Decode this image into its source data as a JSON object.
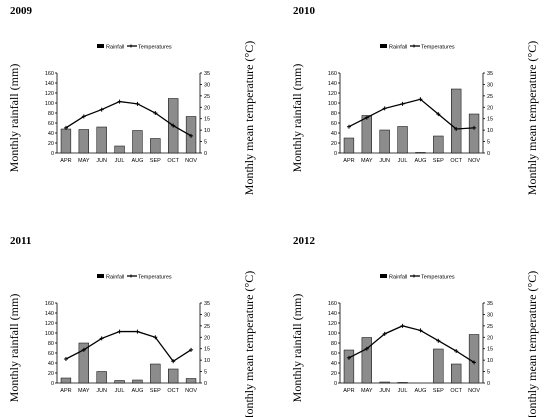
{
  "legend": {
    "rainfall": "Rainfall",
    "temperatures": "Temperatures"
  },
  "chart_data": [
    {
      "type": "bar+line",
      "title": "2009",
      "categories": [
        "APR",
        "MAY",
        "JUN",
        "JUL",
        "AUG",
        "SEP",
        "OCT",
        "NOV"
      ],
      "series": [
        {
          "name": "Rainfall",
          "type": "bar",
          "axis": "left",
          "values": [
            48,
            47,
            52,
            14,
            45,
            29,
            109,
            73
          ]
        },
        {
          "name": "Temperatures",
          "type": "line",
          "axis": "right",
          "values": [
            11,
            16,
            19,
            22.5,
            21.5,
            17.5,
            12,
            7.5
          ]
        }
      ],
      "ylabel": "Monthly rainfall (mm)",
      "y2label": "Monthly mean temperature (°C)",
      "ylim": [
        0,
        160
      ],
      "yticks": [
        0,
        20,
        40,
        60,
        80,
        100,
        120,
        140,
        160
      ],
      "y2lim": [
        0,
        35
      ],
      "y2ticks": [
        0,
        5,
        10,
        15,
        20,
        25,
        30,
        35
      ],
      "grid": false,
      "legend_position": "top"
    },
    {
      "type": "bar+line",
      "title": "2010",
      "categories": [
        "APR",
        "MAY",
        "JUN",
        "JUL",
        "AUG",
        "SEP",
        "OCT",
        "NOV"
      ],
      "series": [
        {
          "name": "Rainfall",
          "type": "bar",
          "axis": "left",
          "values": [
            30,
            75,
            46,
            53,
            1,
            34,
            128,
            78
          ]
        },
        {
          "name": "Temperatures",
          "type": "line",
          "axis": "right",
          "values": [
            11.5,
            15.5,
            19.5,
            21.5,
            23.5,
            17,
            10.5,
            11
          ]
        }
      ],
      "ylabel": "Monthly rainfall (mm)",
      "y2label": "Monthly mean temperature (°C)",
      "ylim": [
        0,
        160
      ],
      "yticks": [
        0,
        20,
        40,
        60,
        80,
        100,
        120,
        140,
        160
      ],
      "y2lim": [
        0,
        35
      ],
      "y2ticks": [
        0,
        5,
        10,
        15,
        20,
        25,
        30,
        35
      ],
      "grid": false,
      "legend_position": "top"
    },
    {
      "type": "bar+line",
      "title": "2011",
      "categories": [
        "APR",
        "MAY",
        "JUN",
        "JUL",
        "AUG",
        "SEP",
        "OCT",
        "NOV"
      ],
      "series": [
        {
          "name": "Rainfall",
          "type": "bar",
          "axis": "left",
          "values": [
            10,
            80,
            23,
            5,
            6,
            38,
            28,
            9
          ]
        },
        {
          "name": "Temperatures",
          "type": "line",
          "axis": "right",
          "values": [
            10.5,
            14.5,
            19.5,
            22.5,
            22.5,
            20,
            9.5,
            14.5
          ]
        }
      ],
      "ylabel": "Monthly rainfall (mm)",
      "y2label": "Monthly mean temperature (°C)",
      "ylim": [
        0,
        160
      ],
      "yticks": [
        0,
        20,
        40,
        60,
        80,
        100,
        120,
        140,
        160
      ],
      "y2lim": [
        0,
        35
      ],
      "y2ticks": [
        0,
        5,
        10,
        15,
        20,
        25,
        30,
        35
      ],
      "grid": false,
      "legend_position": "top"
    },
    {
      "type": "bar+line",
      "title": "2012",
      "categories": [
        "APR",
        "MAY",
        "JUN",
        "JUL",
        "AUG",
        "SEP",
        "OCT",
        "NOV"
      ],
      "series": [
        {
          "name": "Rainfall",
          "type": "bar",
          "axis": "left",
          "values": [
            66,
            91,
            2,
            1,
            0,
            68,
            38,
            97
          ]
        },
        {
          "name": "Temperatures",
          "type": "line",
          "axis": "right",
          "values": [
            11,
            15,
            21.5,
            25,
            23,
            18.5,
            14,
            9
          ]
        }
      ],
      "ylabel": "Monthly rainfall (mm)",
      "y2label": "Monthly mean temperature (°C)",
      "ylim": [
        0,
        160
      ],
      "yticks": [
        0,
        20,
        40,
        60,
        80,
        100,
        120,
        140,
        160
      ],
      "y2lim": [
        0,
        35
      ],
      "y2ticks": [
        0,
        5,
        10,
        15,
        20,
        25,
        30,
        35
      ],
      "grid": false,
      "legend_position": "top"
    }
  ]
}
